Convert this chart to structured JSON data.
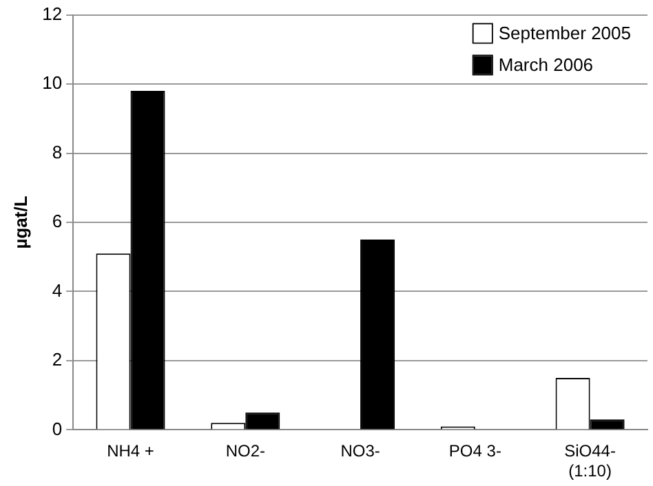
{
  "chart_data": {
    "type": "bar",
    "ylabel": "µgat/L",
    "categories": [
      "NH4 +",
      "NO2-",
      "NO3-",
      "PO4 3-",
      "SiO44-\n(1:10)"
    ],
    "series": [
      {
        "name": "September 2005",
        "color": "#ffffff",
        "values": [
          5.1,
          0.2,
          0,
          0.1,
          1.5
        ]
      },
      {
        "name": "March 2006",
        "color": "#000000",
        "values": [
          9.8,
          0.5,
          5.5,
          0,
          0.3
        ]
      }
    ],
    "ylim": [
      0,
      12
    ],
    "yticks": [
      0,
      2,
      4,
      6,
      8,
      10,
      12
    ],
    "grid": "y",
    "legend": "top right"
  }
}
